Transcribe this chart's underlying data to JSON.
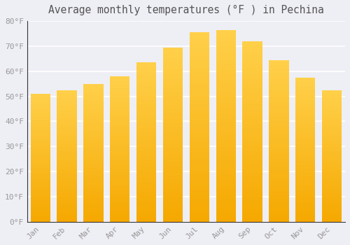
{
  "title": "Average monthly temperatures (°F ) in Pechina",
  "months": [
    "Jan",
    "Feb",
    "Mar",
    "Apr",
    "May",
    "Jun",
    "Jul",
    "Aug",
    "Sep",
    "Oct",
    "Nov",
    "Dec"
  ],
  "values": [
    51.0,
    52.5,
    55.0,
    58.0,
    63.5,
    69.5,
    75.5,
    76.5,
    72.0,
    64.5,
    57.5,
    52.5
  ],
  "bar_color_light": "#FFD04A",
  "bar_color_dark": "#F5A800",
  "background_color": "#EEEEF5",
  "plot_bg_color": "#EEEEF5",
  "grid_color": "#FFFFFF",
  "text_color": "#999999",
  "spine_color": "#333333",
  "ylim": [
    0,
    80
  ],
  "yticks": [
    0,
    10,
    20,
    30,
    40,
    50,
    60,
    70,
    80
  ],
  "title_fontsize": 10.5,
  "tick_fontsize": 8
}
